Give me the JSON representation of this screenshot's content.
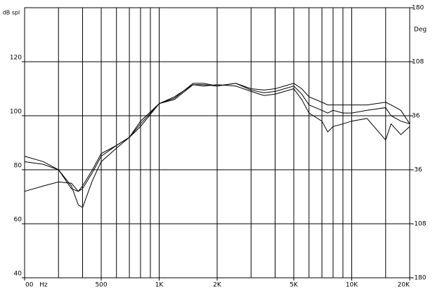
{
  "chart_data": {
    "type": "line",
    "y_label": "dB spl",
    "x_unit_label": "Hz",
    "y2_label": "Deg",
    "log_x": true,
    "grid": true,
    "xlim": [
      200,
      20000
    ],
    "xticks": [
      {
        "value": 200,
        "label": "00"
      },
      500,
      {
        "value": 1000,
        "label": "1K"
      },
      {
        "value": 2000,
        "label": "2K"
      },
      {
        "value": 5000,
        "label": "5K"
      },
      {
        "value": 10000,
        "label": "10K"
      },
      {
        "value": 20000,
        "label": "20K"
      }
    ],
    "xgrid": [
      300,
      400,
      500,
      600,
      700,
      800,
      900,
      1000,
      2000,
      3000,
      4000,
      5000,
      6000,
      7000,
      8000,
      9000,
      10000,
      15000
    ],
    "ylim": [
      40,
      140
    ],
    "yticks": [
      40,
      60,
      80,
      100,
      120
    ],
    "y2lim": [
      -180,
      180
    ],
    "y2ticks": [
      -180,
      -108,
      -36,
      36,
      108,
      180
    ],
    "x": [
      200,
      250,
      300,
      350,
      380,
      400,
      450,
      500,
      600,
      700,
      800,
      1000,
      1200,
      1500,
      1700,
      2000,
      2500,
      3000,
      3500,
      4000,
      5000,
      5500,
      6000,
      7000,
      7500,
      8000,
      9000,
      10000,
      12000,
      15000,
      16000,
      18000,
      20000
    ],
    "series": [
      {
        "color": "#000000",
        "values": [
          85,
          83,
          80,
          74,
          67,
          66,
          76,
          83,
          88,
          92,
          97,
          104.5,
          107,
          111.5,
          111,
          111.5,
          111,
          109,
          107.5,
          108,
          110,
          106,
          101,
          98,
          94,
          96,
          97,
          98,
          99,
          91,
          97,
          93,
          96
        ]
      },
      {
        "color": "#000000",
        "values": [
          83,
          82,
          80,
          73,
          72,
          74,
          80,
          86,
          89,
          92,
          98,
          104.5,
          106,
          111.5,
          111.5,
          111,
          112,
          109.5,
          108.5,
          109,
          111,
          108,
          104,
          102,
          101,
          102,
          101,
          101,
          102,
          103,
          100,
          98,
          97
        ]
      },
      {
        "color": "#000000",
        "values": [
          72,
          74,
          75.5,
          75,
          72,
          73,
          79,
          85,
          89,
          92,
          96,
          104.5,
          106.5,
          112,
          112,
          111,
          112,
          110,
          109.5,
          110,
          112,
          110,
          107,
          105,
          104,
          104,
          104,
          104,
          104,
          105,
          104,
          102,
          97
        ]
      }
    ]
  }
}
